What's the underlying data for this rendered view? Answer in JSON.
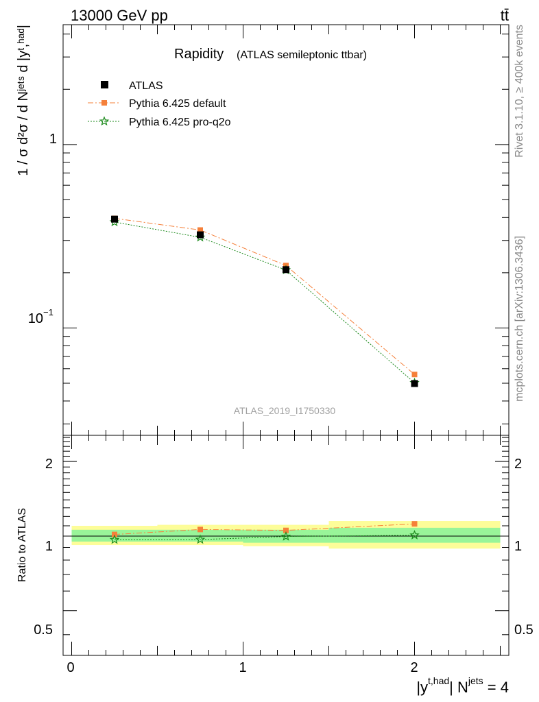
{
  "header": {
    "energy_label": "13000 GeV pp",
    "process_label": "tt̄"
  },
  "side_labels": {
    "rivet": "Rivet 3.1.10, ≥ 400k events",
    "mcplots": "mcplots.cern.ch [arXiv:1306.3436]"
  },
  "main_panel": {
    "title": "Rapidity",
    "subtitle": "(ATLAS semileptonic ttbar)",
    "ylabel": "1 / σ d²σ / d Nʲᵉᵗˢ d |yᵗ,ʰᵃᵈ|",
    "watermark": "ATLAS_2019_I1750330",
    "ytick_1": "1",
    "ytick_01_base": "10",
    "ytick_01_exp": "−1"
  },
  "legend": [
    {
      "label": "ATLAS",
      "color": "#000000",
      "marker": "square"
    },
    {
      "label": "Pythia 6.425 default",
      "color": "#f5803a",
      "marker": "square"
    },
    {
      "label": "Pythia 6.425 pro-q2o",
      "color": "#1c8a1c",
      "marker": "star"
    }
  ],
  "ratio_panel": {
    "ylabel": "Ratio to ATLAS",
    "ytick_labels": [
      "2",
      "1",
      "0.5"
    ]
  },
  "x_axis": {
    "tick_labels": [
      "0",
      "1",
      "2"
    ],
    "label_main": "|y",
    "label_sup1": "t,had",
    "label_mid": "| N",
    "label_sup2": "jets",
    "label_end": " = 4"
  },
  "chart_data": {
    "type": "scatter",
    "x_edges": [
      0,
      0.5,
      1.0,
      1.5,
      2.5
    ],
    "x": [
      0.25,
      0.75,
      1.25,
      2.0
    ],
    "xlim": [
      -0.05,
      2.55
    ],
    "main_ylim": [
      0.026,
      4.5
    ],
    "main_log_y": true,
    "ratio_ylim": [
      0.33,
      2.55
    ],
    "ratio_log_y": true,
    "series": [
      {
        "name": "ATLAS",
        "values": [
          0.392,
          0.322,
          0.208,
          0.0498
        ],
        "color": "#000000",
        "marker": "square"
      },
      {
        "name": "Pythia 6.425 default",
        "values": [
          0.396,
          0.342,
          0.219,
          0.0558
        ],
        "color": "#f5803a",
        "marker": "square",
        "line": "dashdot"
      },
      {
        "name": "Pythia 6.425 pro-q2o",
        "values": [
          0.378,
          0.312,
          0.207,
          0.0502
        ],
        "color": "#1c8a1c",
        "marker": "star",
        "line": "dotted"
      }
    ],
    "ratios": {
      "Pythia 6.425 default": [
        1.015,
        1.063,
        1.054,
        1.12
      ],
      "Pythia 6.425 pro-q2o": [
        0.967,
        0.968,
        0.996,
        1.008
      ]
    },
    "uncertainty_bands": {
      "stat_inner": [
        [
          0.95,
          1.06
        ],
        [
          0.95,
          1.06
        ],
        [
          0.94,
          1.06
        ],
        [
          0.94,
          1.08
        ]
      ],
      "total_outer": [
        [
          0.92,
          1.1
        ],
        [
          0.92,
          1.11
        ],
        [
          0.91,
          1.11
        ],
        [
          0.89,
          1.15
        ]
      ],
      "inner_color": "#99f599",
      "outer_color": "#fdfd99"
    }
  }
}
